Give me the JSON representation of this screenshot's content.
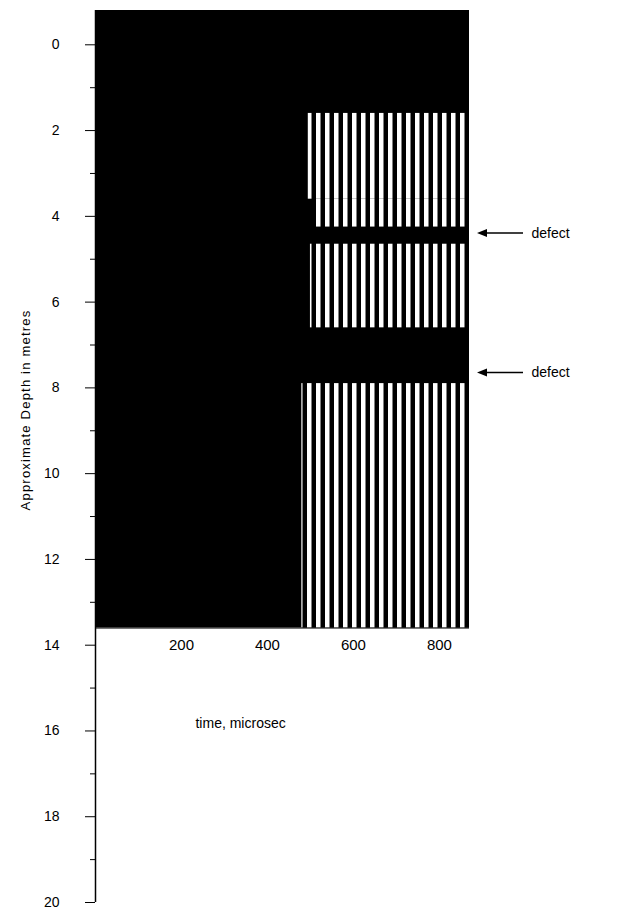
{
  "chart_data": {
    "type": "waveform",
    "xlabel": "time, microsec",
    "ylabel": "Approximate Depth in metres",
    "xlim": [
      0,
      870
    ],
    "xticks": [
      200,
      400,
      600,
      800
    ],
    "ylim": [
      -0.8,
      20
    ],
    "yticks": [
      0,
      2,
      4,
      6,
      8,
      10,
      12,
      14,
      16,
      18,
      20
    ],
    "minor_yticks": [
      1,
      3,
      5,
      7,
      9,
      11,
      13,
      15,
      17,
      19
    ],
    "record_bottom": 13.6,
    "segments": [
      {
        "depth_top": 1.6,
        "depth_bottom": 3.6,
        "arrival": 495
      },
      {
        "depth_top": 3.6,
        "depth_bottom": 4.25,
        "arrival": 505
      },
      {
        "depth_top": 4.65,
        "depth_bottom": 6.6,
        "arrival": 500
      },
      {
        "depth_top": 7.9,
        "depth_bottom": 13.6,
        "arrival": 480
      }
    ],
    "annotations": [
      {
        "depth": 4.4,
        "label": "defect"
      },
      {
        "depth": 7.65,
        "label": "defect"
      }
    ]
  }
}
